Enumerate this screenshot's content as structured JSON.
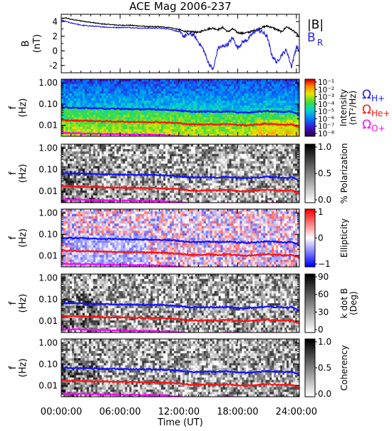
{
  "chart_data": {
    "title": "ACE Mag 2006-237",
    "x_tick_labels": [
      "00:00:00",
      "06:00:00",
      "12:00:00",
      "18:00:00",
      "24:00:00"
    ],
    "x_ticks_hours": [
      0,
      6,
      12,
      18,
      24
    ],
    "xlabel": "Time (UT)",
    "xlim_hours": [
      0,
      24.3
    ],
    "panels": [
      {
        "id": "field",
        "type": "line",
        "ylabel": "B",
        "yunit": "(nT)",
        "ylim": [
          -3,
          5
        ],
        "y_tick_labels": [
          "4",
          "2",
          "0",
          "-2"
        ],
        "y_ticks": [
          4,
          2,
          0,
          -2
        ],
        "legend": [
          "|B|",
          "B_R"
        ],
        "series": [
          {
            "name": "|B|",
            "color": "#000000",
            "x": [
              0,
              0.5,
              1,
              1.5,
              2,
              3,
              4,
              5,
              6,
              7,
              8,
              9,
              10,
              11,
              12,
              12.5,
              13,
              13.5,
              14,
              14.5,
              15,
              15.5,
              16,
              16.5,
              17,
              17.5,
              18,
              18.5,
              19,
              19.5,
              20,
              20.5,
              21,
              21.5,
              22,
              22.5,
              23,
              23.5,
              24,
              24.3
            ],
            "values": [
              4.4,
              4.5,
              4.3,
              4.2,
              4.1,
              3.9,
              3.7,
              3.6,
              3.5,
              3.5,
              3.4,
              3.3,
              3.3,
              3.2,
              2.9,
              2.7,
              2.6,
              2.6,
              2.5,
              2.8,
              3.0,
              3.1,
              2.9,
              3.2,
              2.6,
              3.0,
              2.5,
              2.4,
              2.5,
              2.7,
              2.9,
              3.2,
              3.4,
              3.2,
              2.9,
              2.6,
              3.3,
              2.9,
              2.4,
              1.8
            ]
          },
          {
            "name": "B_R",
            "color": "#2020e0",
            "x": [
              0,
              0.5,
              1,
              1.5,
              2,
              3,
              4,
              5,
              6,
              7,
              8,
              9,
              10,
              11,
              12,
              12.5,
              13,
              13.5,
              14,
              14.5,
              15,
              15.5,
              16,
              16.5,
              17,
              17.5,
              18,
              18.5,
              19,
              19.5,
              20,
              20.5,
              21,
              21.5,
              22,
              22.5,
              23,
              23.5,
              24,
              24.3
            ],
            "values": [
              4.2,
              4.0,
              3.8,
              3.7,
              3.5,
              3.4,
              3.3,
              3.2,
              3.2,
              3.2,
              3.1,
              3.1,
              3.1,
              3.0,
              2.6,
              2.0,
              2.3,
              2.2,
              1.2,
              0.2,
              -1.6,
              -2.6,
              0.4,
              0.6,
              0.9,
              1.8,
              0.4,
              1.2,
              1.5,
              2.3,
              2.9,
              2.6,
              2.0,
              -0.6,
              -1.6,
              -0.5,
              0.1,
              -2.2,
              0.6,
              0.0
            ]
          }
        ]
      },
      {
        "id": "intensity",
        "type": "heatmap",
        "ylabel": "f",
        "yunit": "(Hz)",
        "ylim": [
          0.003,
          1.5
        ],
        "y_tick_labels": [
          "1.00",
          "0.10",
          "0.01"
        ],
        "y_ticks": [
          1.0,
          0.1,
          0.01
        ],
        "colorbar_label": "Intensity",
        "colorbar_unit": "(nT²/Hz)",
        "colorbar_tick_labels": [
          "10⁻¹",
          "10⁻²",
          "10⁻³",
          "10⁻⁴",
          "10⁻⁵",
          "10⁻⁶",
          "10⁻⁷",
          "10⁻⁸"
        ],
        "colormap": "rainbow"
      },
      {
        "id": "polarization",
        "type": "heatmap",
        "ylabel": "f",
        "yunit": "(Hz)",
        "ylim": [
          0.003,
          1.5
        ],
        "y_tick_labels": [
          "1.00",
          "0.10",
          "0.01"
        ],
        "y_ticks": [
          1.0,
          0.1,
          0.01
        ],
        "colorbar_label": "% Polarization",
        "colorbar_tick_labels": [
          "1.0",
          "0.5",
          "0.0"
        ],
        "colormap": "gray"
      },
      {
        "id": "ellipticity",
        "type": "heatmap",
        "ylabel": "f",
        "yunit": "(Hz)",
        "ylim": [
          0.003,
          1.5
        ],
        "y_tick_labels": [
          "1.00",
          "0.10",
          "0.01"
        ],
        "y_ticks": [
          1.0,
          0.1,
          0.01
        ],
        "colorbar_label": "Ellipticity",
        "colorbar_tick_labels": [
          "1",
          "0",
          "−1"
        ],
        "colormap": "bwr"
      },
      {
        "id": "kdotb",
        "type": "heatmap",
        "ylabel": "f",
        "yunit": "(Hz)",
        "ylim": [
          0.003,
          1.5
        ],
        "y_tick_labels": [
          "1.00",
          "0.10",
          "0.01"
        ],
        "y_ticks": [
          1.0,
          0.1,
          0.01
        ],
        "colorbar_label": "k dot B",
        "colorbar_unit": "(Deg)",
        "colorbar_tick_labels": [
          "90",
          "60",
          "30",
          "0"
        ],
        "colormap": "gray"
      },
      {
        "id": "coherency",
        "type": "heatmap",
        "ylabel": "f",
        "yunit": "(Hz)",
        "ylim": [
          0.003,
          1.5
        ],
        "y_tick_labels": [
          "1.00",
          "0.10",
          "0.01"
        ],
        "y_ticks": [
          1.0,
          0.1,
          0.01
        ],
        "colorbar_label": "Coherency",
        "colorbar_tick_labels": [
          "1.0",
          "0.5",
          "0.0"
        ],
        "colormap": "gray"
      }
    ],
    "gyrofrequency_lines": [
      {
        "name": "Ω_H+",
        "color": "#1414ff",
        "x": [
          0,
          2,
          4,
          6,
          8,
          10,
          12,
          13,
          14,
          15,
          16,
          17,
          18,
          19,
          20,
          21,
          22,
          23,
          23.5,
          24,
          24.3
        ],
        "values": [
          0.068,
          0.066,
          0.062,
          0.059,
          0.057,
          0.056,
          0.05,
          0.044,
          0.043,
          0.045,
          0.043,
          0.046,
          0.041,
          0.04,
          0.043,
          0.047,
          0.044,
          0.042,
          0.045,
          0.036,
          0.03
        ]
      },
      {
        "name": "Ω_He+",
        "color": "#ff1414",
        "x": [
          0,
          2,
          4,
          6,
          8,
          10,
          12,
          13,
          14,
          15,
          16,
          17,
          18,
          19,
          20,
          21,
          22,
          23,
          23.5,
          24,
          24.3
        ],
        "values": [
          0.017,
          0.0165,
          0.0155,
          0.0148,
          0.0143,
          0.014,
          0.0125,
          0.011,
          0.0108,
          0.0112,
          0.0108,
          0.0115,
          0.0103,
          0.01,
          0.0108,
          0.0118,
          0.011,
          0.0105,
          0.0112,
          0.009,
          0.0075
        ]
      },
      {
        "name": "Ω_O+",
        "color": "#ff00ff",
        "x": [
          0,
          2,
          4,
          6,
          8,
          10,
          12,
          13,
          14,
          15,
          16,
          17,
          18,
          19,
          20,
          21,
          22,
          23,
          23.5,
          24,
          24.3
        ],
        "values": [
          0.0043,
          0.0041,
          0.0039,
          0.0037,
          0.0036,
          0.0035,
          0.0031,
          0.0028,
          0.0027,
          0.0028,
          0.0027,
          0.0029,
          0.0026,
          0.0025,
          0.0027,
          0.0029,
          0.0028,
          0.0026,
          0.0028,
          0.0023,
          0.0019
        ]
      }
    ],
    "gyro_legend_labels": [
      {
        "symbol": "Ω",
        "sub": "H+",
        "color": "#1414ff"
      },
      {
        "symbol": "Ω",
        "sub": "He+",
        "color": "#ff1414"
      },
      {
        "symbol": "Ω",
        "sub": "O+",
        "color": "#ff00ff"
      }
    ]
  }
}
